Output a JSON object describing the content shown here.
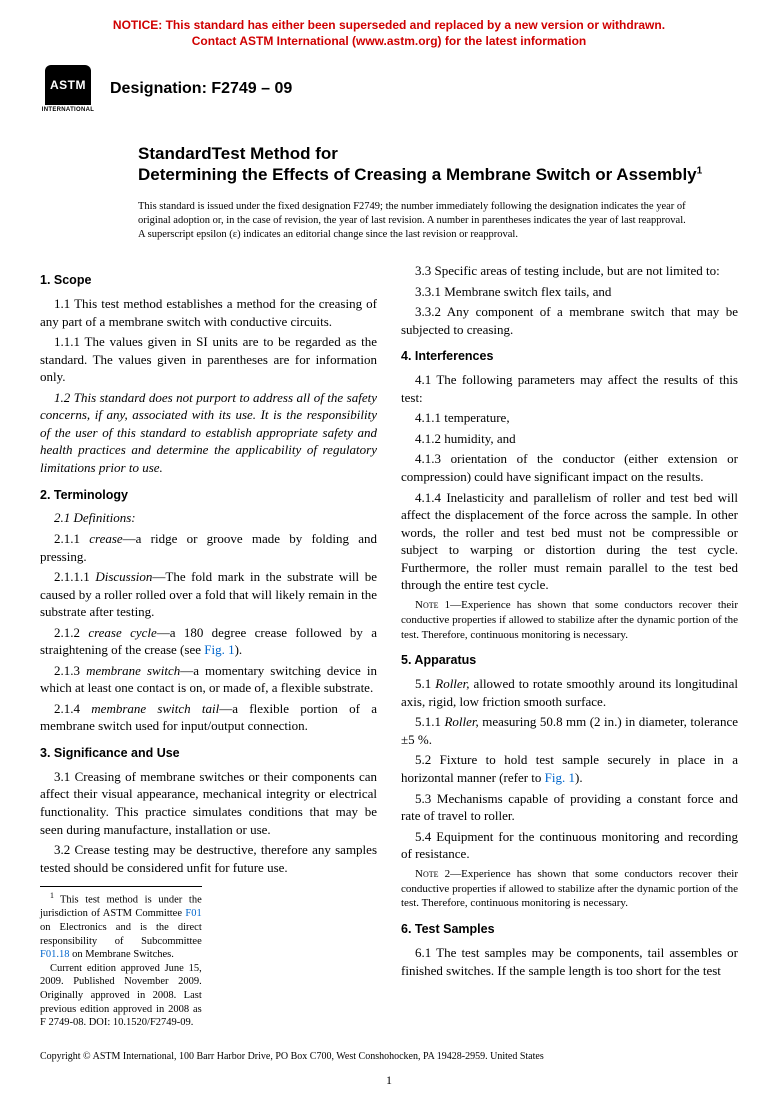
{
  "notice": {
    "line1": "NOTICE: This standard has either been superseded and replaced by a new version or withdrawn.",
    "line2": "Contact ASTM International (www.astm.org) for the latest information"
  },
  "logo": {
    "mark": "ASTM",
    "sub": "INTERNATIONAL"
  },
  "designation": "Designation: F2749 – 09",
  "title": {
    "pre": "StandardTest Method for",
    "main": "Determining the Effects of Creasing a Membrane Switch or Assembly",
    "sup": "1"
  },
  "issued": "This standard is issued under the fixed designation F2749; the number immediately following the designation indicates the year of original adoption or, in the case of revision, the year of last revision. A number in parentheses indicates the year of last reapproval. A superscript epsilon (ε) indicates an editorial change since the last revision or reapproval.",
  "s1": {
    "head": "1. Scope",
    "p1_1": "1.1 This test method establishes a method for the creasing of any part of a membrane switch with conductive circuits.",
    "p1_1_1": "1.1.1 The values given in SI units are to be regarded as the standard. The values given in parentheses are for information only.",
    "p1_2": "1.2 This standard does not purport to address all of the safety concerns, if any, associated with its use. It is the responsibility of the user of this standard to establish appropriate safety and health practices and determine the applicability of regulatory limitations prior to use."
  },
  "s2": {
    "head": "2. Terminology",
    "defs": "2.1 Definitions:",
    "p2_1_1_pre": "2.1.1 ",
    "p2_1_1_term": "crease",
    "p2_1_1_post": "—a ridge or groove made by folding and pressing.",
    "p2_1_1_1_pre": "2.1.1.1 ",
    "p2_1_1_1_term": "Discussion",
    "p2_1_1_1_post": "—The fold mark in the substrate will be caused by a roller rolled over a fold that will likely remain in the substrate after testing.",
    "p2_1_2_pre": "2.1.2 ",
    "p2_1_2_term": "crease cycle",
    "p2_1_2_post": "—a 180 degree crease followed by a straightening of the crease (see ",
    "p2_1_2_fig": "Fig. 1",
    "p2_1_2_end": ").",
    "p2_1_3_pre": "2.1.3 ",
    "p2_1_3_term": "membrane switch",
    "p2_1_3_post": "—a momentary switching device in which at least one contact is on, or made of, a flexible substrate.",
    "p2_1_4_pre": "2.1.4 ",
    "p2_1_4_term": "membrane switch tail",
    "p2_1_4_post": "—a flexible portion of a membrane switch used for input/output connection."
  },
  "s3": {
    "head": "3. Significance and Use",
    "p3_1": "3.1 Creasing of membrane switches or their components can affect their visual appearance, mechanical integrity or electrical functionality. This practice simulates conditions that may be seen during manufacture, installation or use.",
    "p3_2": "3.2 Crease testing may be destructive, therefore any samples tested should be considered unfit for future use.",
    "p3_3": "3.3 Specific areas of testing include, but are not limited to:",
    "p3_3_1": "3.3.1 Membrane switch flex tails, and",
    "p3_3_2": "3.3.2 Any component of a membrane switch that may be subjected to creasing."
  },
  "s4": {
    "head": "4. Interferences",
    "p4_1": "4.1 The following parameters may affect the results of this test:",
    "p4_1_1": "4.1.1 temperature,",
    "p4_1_2": "4.1.2 humidity, and",
    "p4_1_3": "4.1.3 orientation of the conductor (either extension or compression) could have significant impact on the results.",
    "p4_1_4": "4.1.4 Inelasticity and parallelism of roller and test bed will affect the displacement of the force across the sample. In other words, the roller and test bed must not be compressible or subject to warping or distortion during the test cycle. Furthermore, the roller must remain parallel to the test bed through the entire test cycle.",
    "note1_lead": "Note 1—",
    "note1": "Experience has shown that some conductors recover their conductive properties if allowed to stabilize after the dynamic portion of the test. Therefore, continuous monitoring is necessary."
  },
  "s5": {
    "head": "5. Apparatus",
    "p5_1_pre": "5.1 ",
    "p5_1_term": "Roller,",
    "p5_1_post": " allowed to rotate smoothly around its longitudinal axis, rigid, low friction smooth surface.",
    "p5_1_1_pre": "5.1.1 ",
    "p5_1_1_term": "Roller,",
    "p5_1_1_post": " measuring 50.8 mm (2 in.) in diameter, tolerance ±5 %.",
    "p5_2_pre": "5.2 Fixture to hold test sample securely in place in a horizontal manner (refer to ",
    "p5_2_fig": "Fig. 1",
    "p5_2_end": ").",
    "p5_3": "5.3 Mechanisms capable of providing a constant force and rate of travel to roller.",
    "p5_4": "5.4 Equipment for the continuous monitoring and recording of resistance.",
    "note2_lead": "Note 2—",
    "note2": "Experience has shown that some conductors recover their conductive properties if allowed to stabilize after the dynamic portion of the test. Therefore, continuous monitoring is necessary."
  },
  "s6": {
    "head": "6. Test Samples",
    "p6_1": "6.1 The test samples may be components, tail assembles or finished switches. If the sample length is too short for the test"
  },
  "footnote": {
    "f1_pre": "This test method is under the jurisdiction of ASTM Committee ",
    "f1_c1": "F01",
    "f1_mid": " on Electronics and is the direct responsibility of Subcommittee ",
    "f1_c2": "F01.18",
    "f1_end": " on Membrane Switches.",
    "f2": "Current edition approved June 15, 2009. Published November 2009. Originally approved in 2008. Last previous edition approved in 2008 as F 2749-08. DOI: 10.1520/F2749-09."
  },
  "copyright": "Copyright © ASTM International, 100 Barr Harbor Drive, PO Box C700, West Conshohocken, PA 19428-2959. United States",
  "pagenum": "1"
}
